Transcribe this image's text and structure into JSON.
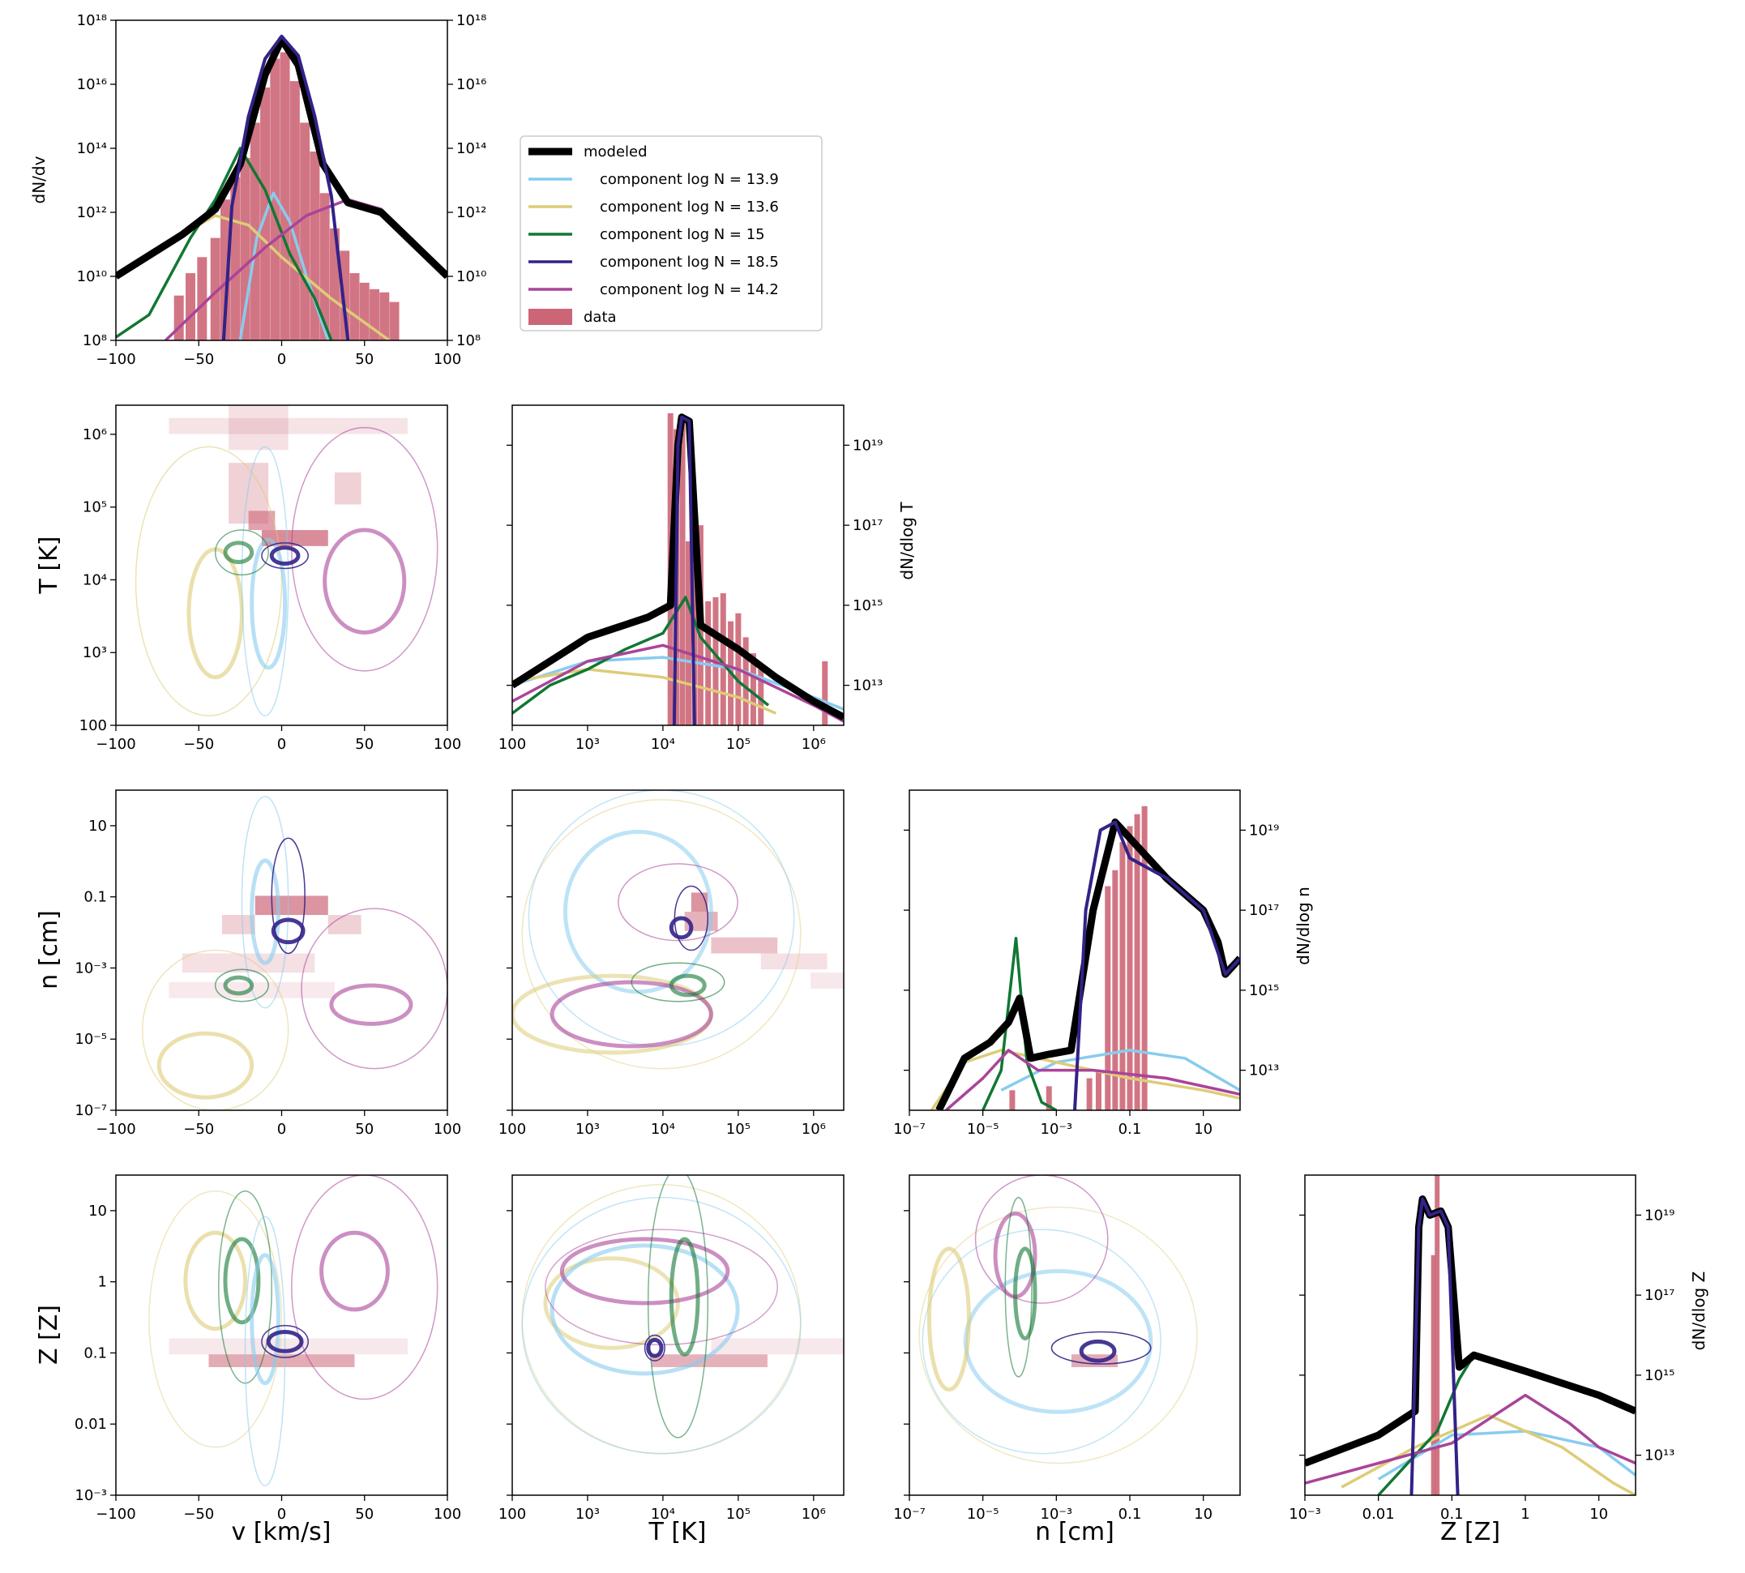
{
  "colors": {
    "modeled": "#000000",
    "c1": "#88CCEE",
    "c2": "#DDCC77",
    "c3": "#117733",
    "c4": "#332288",
    "c5": "#AA4499",
    "data": "#CC6677"
  },
  "legend": {
    "modeled": "modeled",
    "c1": "component log N<sub>H I</sub> = 13.9",
    "c2": "component log N<sub>H I</sub> = 13.6",
    "c3": "component log N<sub>H I</sub> = 15",
    "c4": "component log N<sub>H I</sub> = 18.5",
    "c5": "component log N<sub>H I</sub> = 14.2",
    "data": "data"
  },
  "axis_labels": {
    "v": "v<sub>LOS</sub> [km/s]",
    "T": "T [K]",
    "n": "n<sub>H</sub> [cm<sup>−3</sup>]",
    "Z": "Z [Z<sub>⊙</sub>]",
    "dv": "dN<sub>H I</sub>/dv<sub>LOS</sub>",
    "dT": "dN<sub>H I</sub>/dlog T",
    "dn": "dN<sub>H I</sub>/dlog n<sub>H</sub>",
    "dZ": "dN<sub>H I</sub>/dlog Z"
  },
  "ticks": {
    "v": [
      "−100",
      "−50",
      "0",
      "50",
      "100"
    ],
    "T": [
      "100",
      "10³",
      "10⁴",
      "10⁵",
      "10⁶"
    ],
    "n": [
      "10⁻⁷",
      "10⁻⁵",
      "10⁻³",
      "0.1",
      "10"
    ],
    "Z": [
      "10⁻³",
      "0.01",
      "0.1",
      "1",
      "10"
    ],
    "dv": [
      "10⁸",
      "10¹⁰",
      "10¹²",
      "10¹⁴",
      "10¹⁶",
      "10¹⁸"
    ],
    "hist": [
      "10¹³",
      "10¹⁵",
      "10¹⁷",
      "10¹⁹"
    ]
  },
  "chart_data": [
    {
      "type": "line",
      "panel": "v_los histogram",
      "xlim": [
        -100,
        100
      ],
      "ylim_log10": [
        8,
        18
      ],
      "series": [
        {
          "name": "modeled",
          "x": [
            -100,
            -60,
            -40,
            -25,
            -10,
            0,
            10,
            25,
            40,
            60,
            100
          ],
          "log10_y": [
            10.0,
            11.3,
            12.1,
            13.5,
            16.3,
            17.4,
            16.6,
            13.5,
            12.3,
            12.0,
            10.0
          ]
        },
        {
          "name": "component log N_HI = 13.9",
          "x": [
            -25,
            -15,
            -5,
            5,
            15,
            28
          ],
          "log10_y": [
            8.0,
            11.2,
            12.6,
            11.7,
            10.0,
            8.0
          ]
        },
        {
          "name": "component log N_HI = 13.6",
          "x": [
            -100,
            -70,
            -40,
            -20,
            0,
            30,
            65
          ],
          "log10_y": [
            10.0,
            11.0,
            11.9,
            11.6,
            10.6,
            9.3,
            8.0
          ]
        },
        {
          "name": "component log N_HI = 15",
          "x": [
            -100,
            -80,
            -55,
            -40,
            -25,
            -10,
            5,
            20,
            30
          ],
          "log10_y": [
            8.1,
            8.8,
            11.2,
            12.4,
            14.0,
            12.7,
            10.7,
            9.3,
            8.0
          ]
        },
        {
          "name": "component log N_HI = 18.5",
          "x": [
            -35,
            -30,
            -20,
            -10,
            0,
            10,
            20,
            30,
            40
          ],
          "log10_y": [
            8.0,
            12.2,
            15.0,
            16.8,
            17.5,
            16.9,
            15.0,
            12.5,
            8.0
          ]
        },
        {
          "name": "component log N_HI = 14.2",
          "x": [
            -70,
            -40,
            -10,
            15,
            40,
            60,
            80,
            100
          ],
          "log10_y": [
            8.0,
            9.5,
            10.9,
            11.9,
            12.4,
            12.1,
            11.1,
            10.0
          ]
        }
      ],
      "data_bins": {
        "x": [
          -62,
          -55,
          -48,
          -40,
          -34,
          -28,
          -22,
          -16,
          -10,
          -4,
          2,
          8,
          14,
          20,
          26,
          32,
          38,
          44,
          50,
          56,
          62,
          68
        ],
        "log10_y": [
          9.4,
          10.1,
          10.6,
          11.2,
          12.4,
          13.1,
          13.7,
          14.8,
          15.9,
          16.8,
          17.0,
          16.1,
          14.8,
          13.9,
          12.6,
          11.5,
          10.8,
          10.1,
          9.8,
          9.6,
          9.5,
          9.2
        ]
      }
    },
    {
      "type": "line",
      "panel": "T histogram",
      "xlim_log10": [
        2,
        6.4
      ],
      "ylim_log10": [
        12.0,
        20.0
      ],
      "series": [
        {
          "name": "modeled",
          "x_log10": [
            2.0,
            3.0,
            3.8,
            4.1,
            4.2,
            4.25,
            4.35,
            4.5,
            5.0,
            5.5,
            6.0,
            6.4
          ],
          "log10_y": [
            13.0,
            14.2,
            14.7,
            15.0,
            19.0,
            19.7,
            19.6,
            14.5,
            13.9,
            13.2,
            12.6,
            12.2
          ]
        },
        {
          "name": "component log N_HI = 13.9",
          "x_log10": [
            2.0,
            3.0,
            4.0,
            5.0,
            6.0,
            6.4
          ],
          "log10_y": [
            13.0,
            13.6,
            13.7,
            13.4,
            12.7,
            12.4
          ]
        },
        {
          "name": "component log N_HI = 13.6",
          "x_log10": [
            2.0,
            3.0,
            4.0,
            5.0,
            5.5
          ],
          "log10_y": [
            13.1,
            13.4,
            13.2,
            12.7,
            12.3
          ]
        },
        {
          "name": "component log N_HI = 15",
          "x_log10": [
            2.0,
            2.5,
            3.0,
            3.5,
            4.0,
            4.3,
            4.5,
            5.0,
            5.4
          ],
          "log10_y": [
            12.3,
            13.0,
            13.4,
            13.9,
            14.3,
            15.2,
            14.2,
            13.1,
            12.5
          ]
        },
        {
          "name": "component log N_HI = 18.5",
          "x_log10": [
            4.15,
            4.2,
            4.25,
            4.35,
            4.42
          ],
          "log10_y": [
            12.0,
            19.0,
            19.7,
            19.6,
            12.0
          ]
        },
        {
          "name": "component log N_HI = 14.2",
          "x_log10": [
            2.0,
            3.0,
            4.0,
            5.0,
            6.0,
            6.4
          ],
          "log10_y": [
            12.6,
            13.6,
            14.0,
            13.4,
            12.5,
            12.1
          ]
        }
      ],
      "data_bins": {
        "x_log10": [
          4.1,
          4.18,
          4.26,
          4.34,
          4.42,
          4.5,
          4.6,
          4.7,
          4.8,
          4.9,
          5.0,
          5.1,
          5.2,
          5.3,
          6.15
        ],
        "log10_y": [
          19.8,
          19.4,
          19.7,
          16.6,
          16.0,
          17.0,
          15.1,
          15.2,
          15.3,
          14.6,
          14.8,
          14.2,
          13.8,
          13.4,
          13.6
        ]
      }
    },
    {
      "type": "line",
      "panel": "n_H histogram",
      "xlim_log10": [
        -7,
        2
      ],
      "ylim_log10": [
        12.0,
        20.0
      ],
      "series": [
        {
          "name": "modeled",
          "x_log10": [
            -6.2,
            -5.5,
            -4.8,
            -4.3,
            -4.0,
            -3.7,
            -3.2,
            -2.6,
            -2.0,
            -1.4,
            0.0,
            1.0,
            1.4,
            1.6,
            2.0
          ],
          "log10_y": [
            12.0,
            13.3,
            13.7,
            14.2,
            14.8,
            13.3,
            13.4,
            13.5,
            17.0,
            19.2,
            17.8,
            17.0,
            16.2,
            15.4,
            15.8
          ]
        },
        {
          "name": "component log N_HI = 13.9",
          "x_log10": [
            -4.5,
            -3.0,
            -1.0,
            0.5,
            2.0
          ],
          "log10_y": [
            12.5,
            13.2,
            13.5,
            13.3,
            12.5
          ]
        },
        {
          "name": "component log N_HI = 13.6",
          "x_log10": [
            -6.4,
            -5.5,
            -4.5,
            -3.0,
            -1.0,
            1.0,
            2.0
          ],
          "log10_y": [
            12.0,
            13.2,
            13.5,
            13.2,
            12.8,
            12.5,
            12.3
          ]
        },
        {
          "name": "component log N_HI = 15",
          "x_log10": [
            -5.0,
            -4.5,
            -4.1,
            -3.8,
            -3.4,
            -3.0
          ],
          "log10_y": [
            12.0,
            13.0,
            16.3,
            13.2,
            12.2,
            12.0
          ]
        },
        {
          "name": "component log N_HI = 18.5",
          "x_log10": [
            -2.5,
            -2.2,
            -1.8,
            -1.4,
            -1.0,
            0.0,
            1.0,
            1.6,
            2.0
          ],
          "log10_y": [
            12.0,
            17.0,
            19.0,
            19.2,
            18.3,
            17.8,
            17.0,
            15.4,
            15.8
          ]
        },
        {
          "name": "component log N_HI = 14.2",
          "x_log10": [
            -6.0,
            -5.0,
            -4.3,
            -3.5,
            -2.0,
            0.0,
            2.0
          ],
          "log10_y": [
            12.0,
            12.8,
            13.5,
            13.0,
            13.0,
            12.8,
            12.4
          ]
        }
      ],
      "data_bins": {
        "x_log10": [
          -4.2,
          -3.2,
          -2.1,
          -1.85,
          -1.6,
          -1.4,
          -1.2,
          -1.0,
          -0.8,
          -0.6
        ],
        "log10_y": [
          12.5,
          12.6,
          12.8,
          13.0,
          17.6,
          18.0,
          18.7,
          19.1,
          19.4,
          19.6
        ]
      }
    },
    {
      "type": "line",
      "panel": "Z histogram",
      "xlim_log10": [
        -3,
        1.5
      ],
      "ylim_log10": [
        12.0,
        20.0
      ],
      "series": [
        {
          "name": "modeled",
          "x_log10": [
            -3.0,
            -2.0,
            -1.5,
            -1.45,
            -1.4,
            -1.3,
            -1.15,
            -1.05,
            -0.9,
            -0.7,
            0.0,
            1.0,
            1.5
          ],
          "log10_y": [
            12.8,
            13.5,
            14.1,
            18.7,
            19.4,
            19.0,
            19.1,
            18.7,
            15.2,
            15.5,
            15.1,
            14.5,
            14.1
          ]
        },
        {
          "name": "component log N_HI = 13.9",
          "x_log10": [
            -2.0,
            -1.0,
            0.0,
            1.0,
            1.5
          ],
          "log10_y": [
            12.4,
            13.5,
            13.6,
            13.2,
            12.5
          ]
        },
        {
          "name": "component log N_HI = 13.6",
          "x_log10": [
            -2.5,
            -1.5,
            -0.5,
            0.5,
            1.2,
            1.5
          ],
          "log10_y": [
            12.2,
            13.2,
            14.0,
            13.2,
            12.3,
            12.0
          ]
        },
        {
          "name": "component log N_HI = 15",
          "x_log10": [
            -2.0,
            -1.5,
            -1.2,
            -0.9,
            -0.7,
            0.0,
            1.0,
            1.5
          ],
          "log10_y": [
            12.0,
            13.0,
            13.6,
            14.9,
            15.5,
            15.1,
            14.5,
            14.1
          ]
        },
        {
          "name": "component log N_HI = 18.5",
          "x_log10": [
            -1.55,
            -1.45,
            -1.4,
            -1.3,
            -1.15,
            -1.05,
            -0.92
          ],
          "log10_y": [
            12.0,
            18.7,
            19.4,
            19.0,
            19.1,
            18.7,
            12.0
          ]
        },
        {
          "name": "component log N_HI = 14.2",
          "x_log10": [
            -3.0,
            -2.0,
            -1.0,
            0.0,
            0.6,
            1.0,
            1.5
          ],
          "log10_y": [
            12.3,
            12.8,
            13.3,
            14.5,
            13.8,
            13.2,
            12.8
          ]
        }
      ],
      "data_bins": {
        "x_log10": [
          -1.25,
          -1.2
        ],
        "log10_y": [
          18.0,
          20.0
        ]
      }
    }
  ]
}
